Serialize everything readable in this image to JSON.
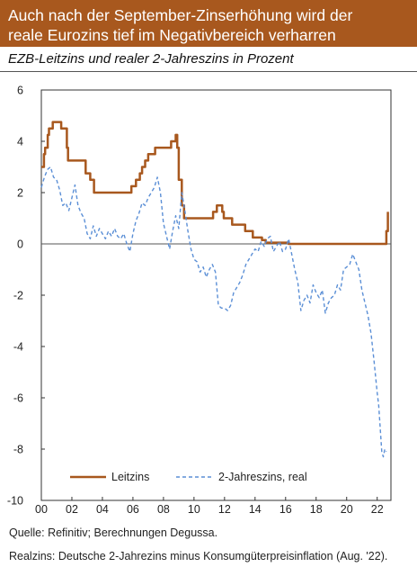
{
  "header": {
    "title_line1": "Auch nach der September-Zinserhöhung wird der",
    "title_line2": "reale Eurozins tief im Negativbereich verharren"
  },
  "subtitle": "EZB-Leitzins und realer 2-Jahreszins in Prozent",
  "footer": {
    "source": "Quelle: Refinitiv; Berechnungen Degussa.",
    "note": "Realzins: Deutsche 2-Jahrezins minus Konsumgüterpreisinflation (Aug. '22)."
  },
  "colors": {
    "header_bg": "#a8581e",
    "leitzins": "#a8581e",
    "realzins": "#5b8fd6"
  },
  "chart_data": {
    "type": "line",
    "title": "EZB-Leitzins und realer 2-Jahreszins in Prozent",
    "xlabel": "",
    "ylabel": "",
    "xlim": [
      2000,
      2022.9
    ],
    "ylim": [
      -10,
      6
    ],
    "x_ticks": [
      2000,
      2002,
      2004,
      2006,
      2008,
      2010,
      2012,
      2014,
      2016,
      2018,
      2020,
      2022
    ],
    "x_tick_labels": [
      "00",
      "02",
      "04",
      "06",
      "08",
      "10",
      "12",
      "14",
      "16",
      "18",
      "20",
      "22"
    ],
    "y_ticks": [
      6,
      4,
      2,
      0,
      -2,
      -4,
      -6,
      -8,
      -10
    ],
    "y_tick_labels": [
      "6",
      "4",
      "2",
      "0",
      "-2",
      "-4",
      "-6",
      "-8",
      "-10"
    ],
    "grid": false,
    "zero_line": true,
    "legend_position": "bottom",
    "series": [
      {
        "name": "Leitzins",
        "style": "solid",
        "x": [
          2000.0,
          2000.17,
          2000.25,
          2000.42,
          2000.5,
          2000.75,
          2001.3,
          2001.67,
          2001.75,
          2002.9,
          2003.2,
          2003.45,
          2005.9,
          2006.2,
          2006.45,
          2006.6,
          2006.8,
          2007.0,
          2007.45,
          2008.5,
          2008.8,
          2008.9,
          2009.0,
          2009.2,
          2009.35,
          2011.25,
          2011.5,
          2011.85,
          2011.95,
          2012.5,
          2013.35,
          2013.85,
          2014.45,
          2014.7,
          2016.2,
          2022.5,
          2022.6,
          2022.7
        ],
        "y": [
          3.0,
          3.5,
          3.75,
          4.25,
          4.5,
          4.75,
          4.5,
          3.75,
          3.25,
          2.75,
          2.5,
          2.0,
          2.25,
          2.5,
          2.75,
          3.0,
          3.25,
          3.5,
          3.75,
          4.0,
          4.25,
          3.75,
          2.5,
          1.5,
          1.0,
          1.25,
          1.5,
          1.25,
          1.0,
          0.75,
          0.5,
          0.25,
          0.15,
          0.05,
          0.0,
          0.0,
          0.5,
          1.25
        ],
        "step": true
      },
      {
        "name": "2-Jahreszins, real",
        "style": "dashed",
        "x": [
          2000.0,
          2000.2,
          2000.4,
          2000.6,
          2000.8,
          2001.0,
          2001.2,
          2001.4,
          2001.6,
          2001.8,
          2002.0,
          2002.2,
          2002.4,
          2002.6,
          2002.8,
          2003.0,
          2003.2,
          2003.4,
          2003.6,
          2003.8,
          2004.0,
          2004.2,
          2004.4,
          2004.6,
          2004.8,
          2005.0,
          2005.2,
          2005.4,
          2005.6,
          2005.8,
          2006.0,
          2006.2,
          2006.4,
          2006.6,
          2006.8,
          2007.0,
          2007.2,
          2007.4,
          2007.6,
          2007.8,
          2008.0,
          2008.2,
          2008.4,
          2008.6,
          2008.8,
          2009.0,
          2009.2,
          2009.4,
          2009.6,
          2009.8,
          2010.0,
          2010.2,
          2010.4,
          2010.6,
          2010.8,
          2011.0,
          2011.2,
          2011.4,
          2011.6,
          2011.8,
          2012.0,
          2012.2,
          2012.4,
          2012.6,
          2012.8,
          2013.0,
          2013.2,
          2013.4,
          2013.6,
          2013.8,
          2014.0,
          2014.2,
          2014.4,
          2014.6,
          2014.8,
          2015.0,
          2015.2,
          2015.4,
          2015.6,
          2015.8,
          2016.0,
          2016.2,
          2016.4,
          2016.6,
          2016.8,
          2017.0,
          2017.2,
          2017.4,
          2017.6,
          2017.8,
          2018.0,
          2018.2,
          2018.4,
          2018.6,
          2018.8,
          2019.0,
          2019.2,
          2019.4,
          2019.6,
          2019.8,
          2020.0,
          2020.2,
          2020.4,
          2020.6,
          2020.8,
          2021.0,
          2021.2,
          2021.4,
          2021.6,
          2021.8,
          2022.0,
          2022.1,
          2022.2,
          2022.3,
          2022.4,
          2022.5,
          2022.6
        ],
        "y": [
          2.2,
          2.6,
          2.9,
          3.0,
          2.6,
          2.5,
          2.1,
          1.5,
          1.6,
          1.3,
          1.8,
          2.3,
          1.5,
          1.2,
          1.0,
          0.4,
          0.2,
          0.7,
          0.3,
          0.6,
          0.4,
          0.2,
          0.5,
          0.3,
          0.6,
          0.3,
          0.2,
          0.4,
          0.0,
          -0.3,
          0.4,
          0.9,
          1.2,
          1.6,
          1.5,
          1.8,
          2.0,
          2.2,
          2.6,
          2.0,
          0.8,
          0.3,
          -0.2,
          0.5,
          1.1,
          0.6,
          2.0,
          1.3,
          0.5,
          -0.2,
          -0.6,
          -0.7,
          -1.1,
          -0.9,
          -1.3,
          -1.0,
          -0.8,
          -1.1,
          -2.4,
          -2.5,
          -2.5,
          -2.6,
          -2.4,
          -1.9,
          -1.7,
          -1.5,
          -1.2,
          -0.8,
          -0.6,
          -0.4,
          -0.2,
          -0.3,
          0.1,
          -0.1,
          0.2,
          0.3,
          -0.3,
          -0.1,
          0.1,
          -0.3,
          -0.2,
          0.2,
          -0.4,
          -1.0,
          -1.5,
          -2.6,
          -2.2,
          -2.0,
          -2.3,
          -1.6,
          -1.9,
          -2.1,
          -1.8,
          -2.7,
          -2.3,
          -2.1,
          -2.0,
          -1.6,
          -1.8,
          -1.0,
          -0.9,
          -0.8,
          -0.4,
          -0.7,
          -1.0,
          -1.8,
          -2.3,
          -2.8,
          -3.5,
          -4.6,
          -5.8,
          -6.3,
          -7.2,
          -8.1,
          -8.3,
          -8.0,
          -8.1
        ]
      }
    ]
  }
}
